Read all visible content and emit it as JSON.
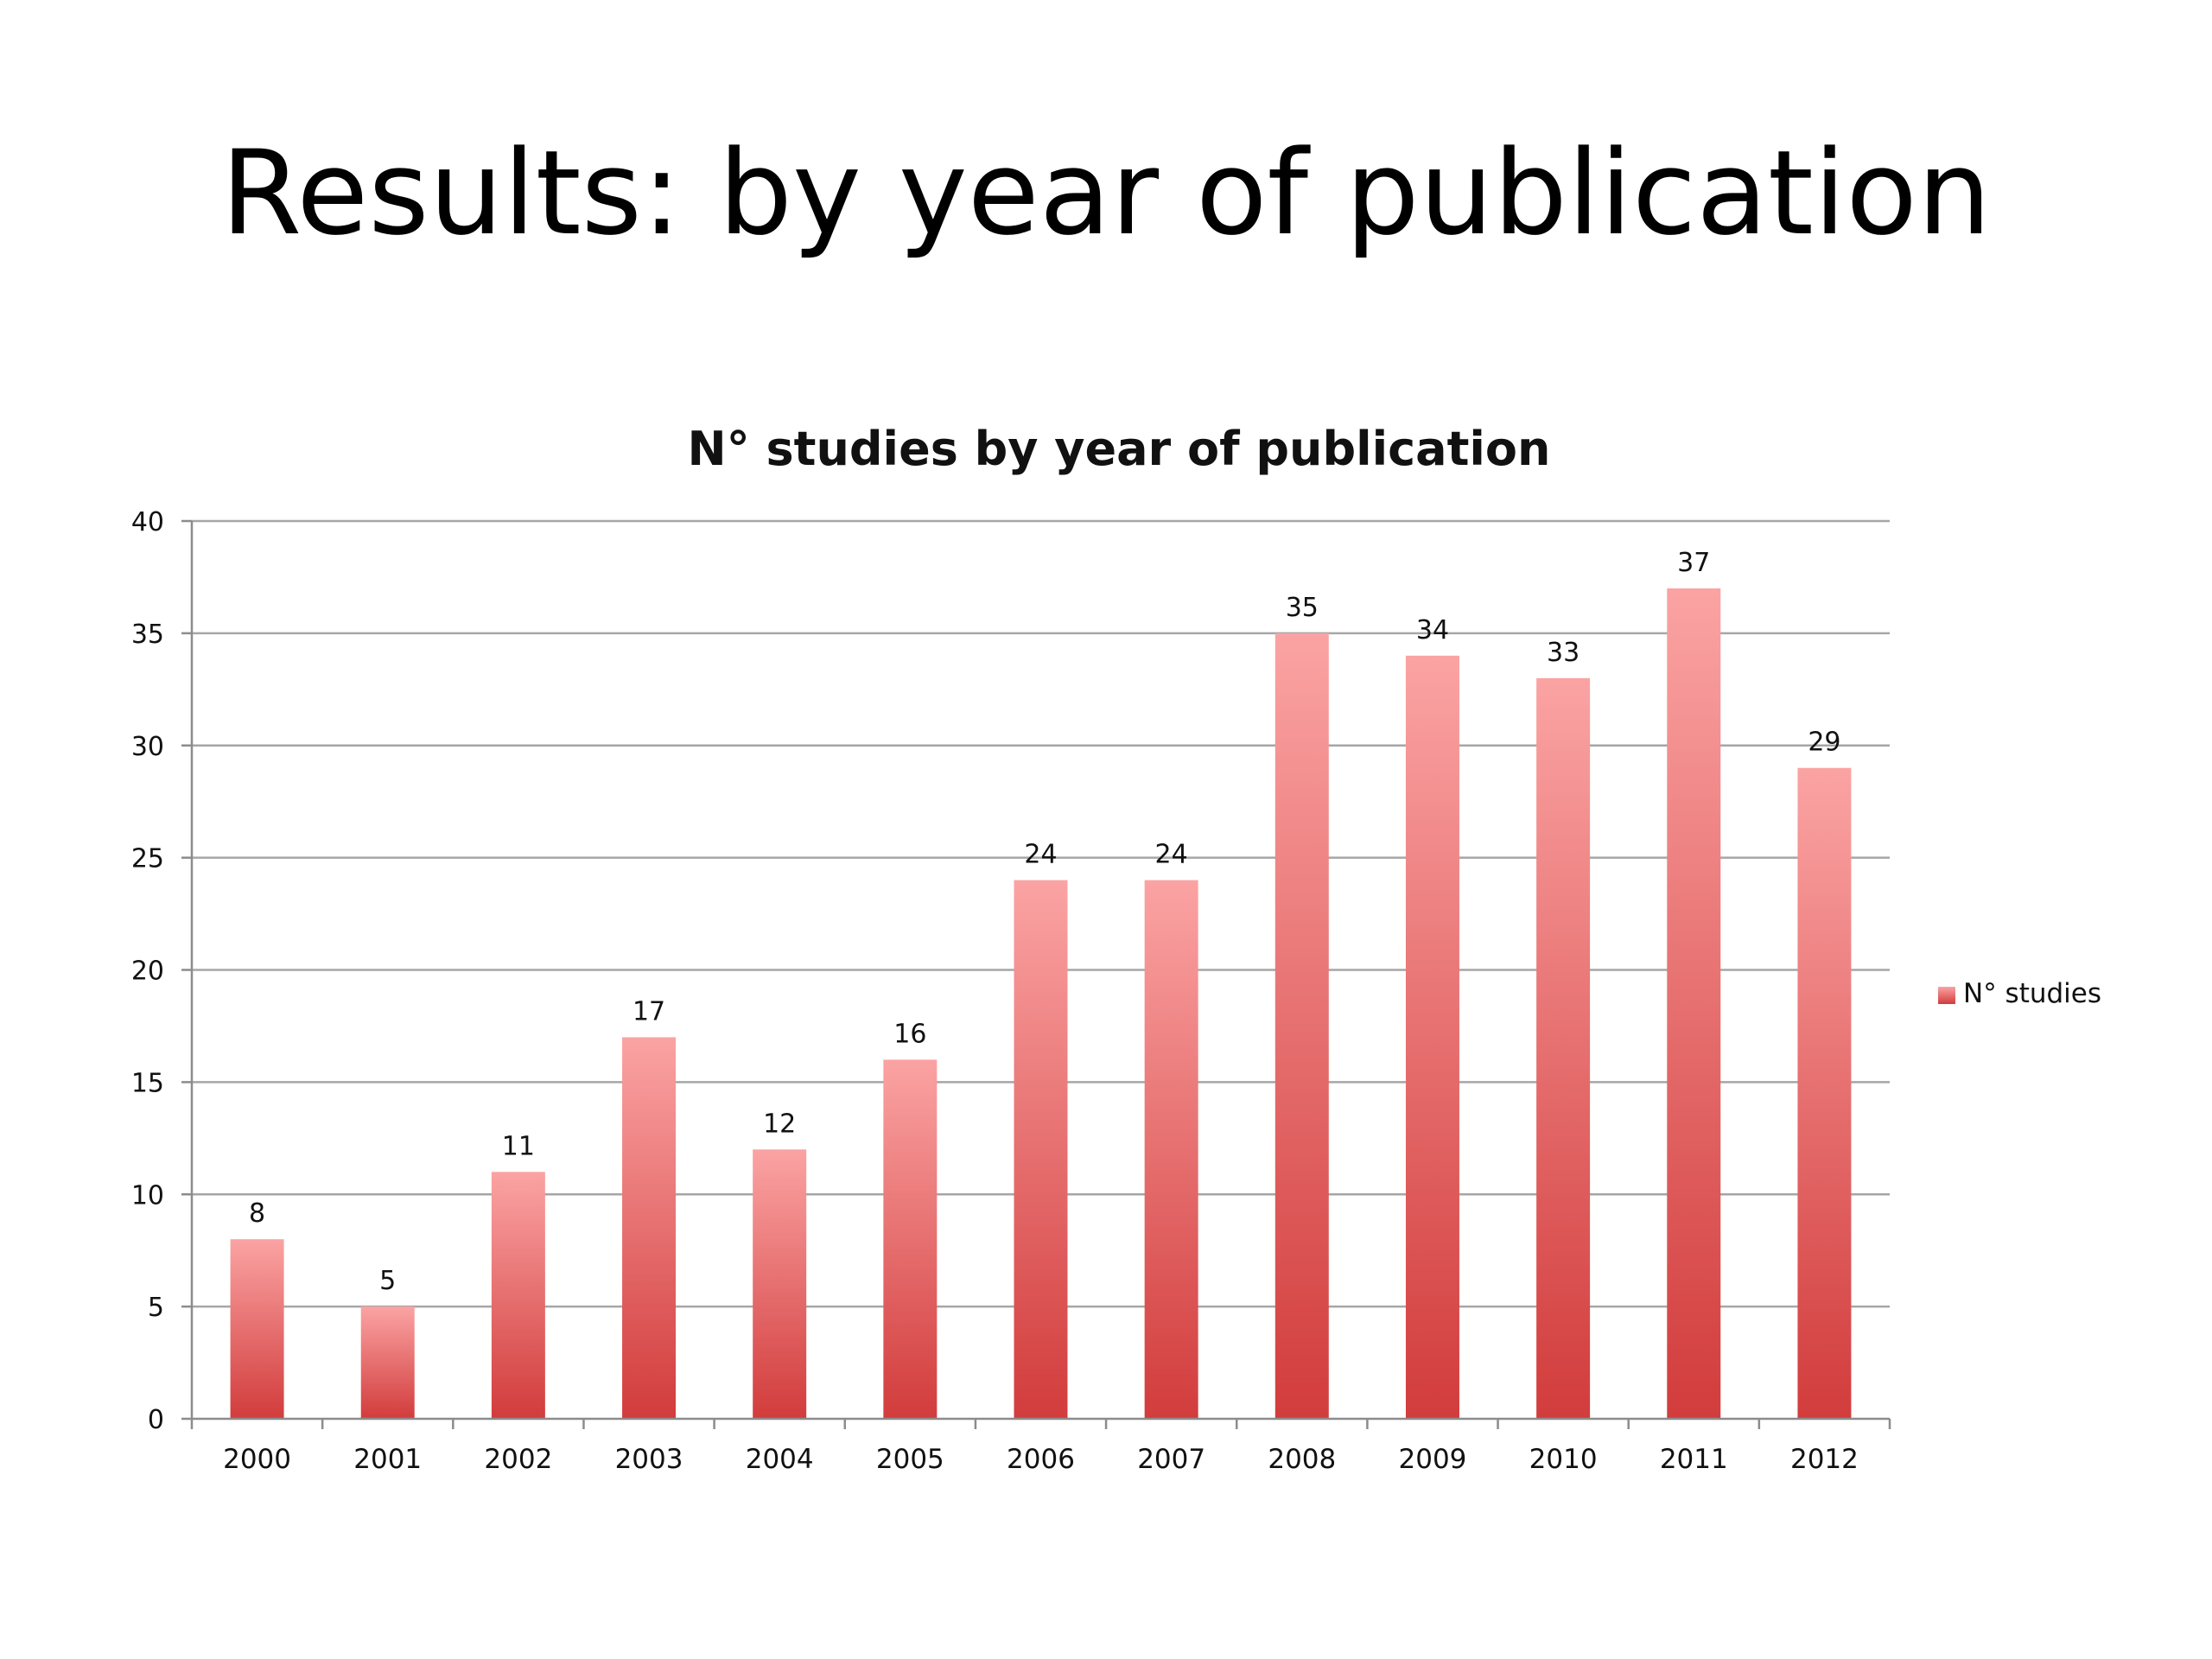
{
  "slide": {
    "title": "Results: by year of publication"
  },
  "colors": {
    "bar_top": "#fba3a3",
    "bar_bottom": "#d23c3c",
    "grid": "#a6a6a6",
    "axis": "#8c8c8c"
  },
  "chart_data": {
    "type": "bar",
    "title": "N° studies by year of publication",
    "categories": [
      "2000",
      "2001",
      "2002",
      "2003",
      "2004",
      "2005",
      "2006",
      "2007",
      "2008",
      "2009",
      "2010",
      "2011",
      "2012"
    ],
    "series": [
      {
        "name": "N° studies",
        "values": [
          8,
          5,
          11,
          17,
          12,
          16,
          24,
          24,
          35,
          34,
          33,
          37,
          29
        ]
      }
    ],
    "ylim": [
      0,
      40
    ],
    "yticks": [
      0,
      5,
      10,
      15,
      20,
      25,
      30,
      35,
      40
    ],
    "xlabel": "",
    "ylabel": "",
    "grid": true,
    "legend": "right",
    "data_labels": true
  }
}
